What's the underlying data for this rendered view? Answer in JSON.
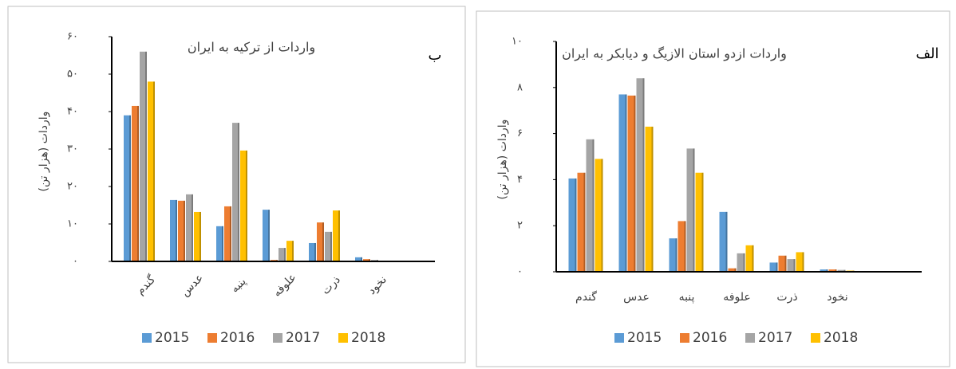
{
  "chart_data": [
    {
      "type": "bar",
      "title": "واردات از ترکیه به ایران",
      "panel_label": "ب",
      "y_label": "واردات (هزار تن)",
      "categories": [
        "گندم",
        "عدس",
        "پنبه",
        "علوفه",
        "ذرت",
        "نخود"
      ],
      "series": [
        {
          "name": "2015",
          "color": "#5b9bd5",
          "values": [
            39,
            16.4,
            9.4,
            13.8,
            4.9,
            1.1
          ]
        },
        {
          "name": "2016",
          "color": "#ed7d31",
          "values": [
            41.5,
            16.2,
            14.7,
            0.4,
            10.4,
            0.6
          ]
        },
        {
          "name": "2017",
          "color": "#a5a5a5",
          "values": [
            56,
            17.9,
            37,
            3.6,
            7.9,
            0.4
          ]
        },
        {
          "name": "2018",
          "color": "#ffc000",
          "values": [
            48,
            13.2,
            29.6,
            5.5,
            13.6,
            0.2
          ]
        }
      ],
      "ylim": [
        0,
        60
      ],
      "yticks": [
        {
          "value": 0,
          "label": "۰"
        },
        {
          "value": 10,
          "label": "۱۰"
        },
        {
          "value": 20,
          "label": "۲۰"
        },
        {
          "value": 30,
          "label": "۳۰"
        },
        {
          "value": 40,
          "label": "۴۰"
        },
        {
          "value": 50,
          "label": "۵۰"
        },
        {
          "value": 60,
          "label": "۶۰"
        }
      ],
      "legend": "bottom"
    },
    {
      "type": "bar",
      "title": "واردات ازدو استان الازیگ و دیابکر به ایران",
      "panel_label": "الف",
      "y_label": "واردات (هزار تن)",
      "categories": [
        "گندم",
        "عدس",
        "پنبه",
        "علوفه",
        "ذرت",
        "نخود"
      ],
      "series": [
        {
          "name": "2015",
          "color": "#5b9bd5",
          "values": [
            4.05,
            7.7,
            1.45,
            2.6,
            0.4,
            0.1
          ]
        },
        {
          "name": "2016",
          "color": "#ed7d31",
          "values": [
            4.3,
            7.65,
            2.2,
            0.15,
            0.7,
            0.1
          ]
        },
        {
          "name": "2017",
          "color": "#a5a5a5",
          "values": [
            5.75,
            8.4,
            5.35,
            0.8,
            0.55,
            0.08
          ]
        },
        {
          "name": "2018",
          "color": "#ffc000",
          "values": [
            4.9,
            6.3,
            4.3,
            1.15,
            0.85,
            0.05
          ]
        }
      ],
      "ylim": [
        0,
        10
      ],
      "yticks": [
        {
          "value": 0,
          "label": "۰"
        },
        {
          "value": 2,
          "label": "۲"
        },
        {
          "value": 4,
          "label": "۴"
        },
        {
          "value": 6,
          "label": "۶"
        },
        {
          "value": 8,
          "label": "۸"
        },
        {
          "value": 10,
          "label": "۱۰"
        }
      ],
      "legend": "bottom"
    }
  ]
}
